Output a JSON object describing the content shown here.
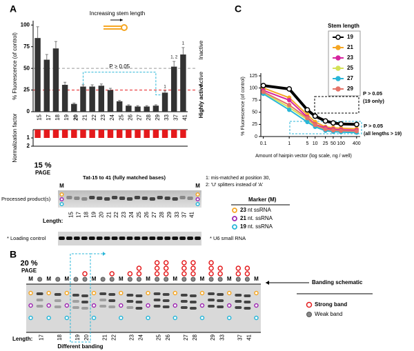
{
  "chart_data": [
    {
      "type": "bar",
      "panel": "A",
      "ylabel": "% Fluorescence (of control)",
      "categories": [
        "15",
        "17",
        "18",
        "19",
        "20",
        "21",
        "22",
        "23",
        "24",
        "25",
        "26",
        "27",
        "28",
        "29",
        "33",
        "37",
        "41"
      ],
      "values": [
        85,
        60,
        73,
        31,
        9,
        29,
        29,
        30,
        25,
        12,
        7,
        6,
        6,
        7,
        22,
        52,
        66
      ],
      "errors": [
        13,
        6,
        8,
        3,
        1,
        2,
        2,
        2,
        2,
        1,
        1,
        1,
        1,
        1,
        2,
        6,
        8
      ],
      "bar_notes": [
        null,
        null,
        null,
        null,
        null,
        null,
        null,
        null,
        null,
        null,
        null,
        null,
        null,
        null,
        "1",
        "1, 2",
        "1"
      ],
      "highlight": "20",
      "highlight_color": "#e41a1c",
      "color": "#333333",
      "ylim": [
        0,
        105
      ],
      "yticks": [
        0,
        25,
        50,
        75,
        100
      ],
      "ref_lines": [
        {
          "value": 50,
          "label": "Inactive",
          "color": "#999999"
        },
        {
          "value": 25,
          "label": "Highly active",
          "color": "#e41a1c"
        }
      ],
      "annotations": {
        "stem": "Increasing stem length",
        "p": "P > 0.05",
        "active": "Active"
      }
    },
    {
      "type": "bar",
      "inverted": true,
      "ylabel": "Normalization factor",
      "values": [
        1,
        1,
        1,
        1,
        1,
        1,
        1,
        1,
        1,
        1,
        1,
        1,
        1,
        1,
        1,
        1,
        1
      ],
      "color": "#e41a1c",
      "ylim": [
        0,
        2
      ],
      "yticks": [
        1,
        2
      ],
      "ytick_colors": [
        "#e41a1c",
        "#000000"
      ]
    },
    {
      "type": "line",
      "panel": "C",
      "ylabel": "% Fluorescence (of control)",
      "xlabel": "Amount of hairpin vector (log scale, ng / well)",
      "log_x": true,
      "x": [
        0.1,
        1,
        5,
        10,
        25,
        50,
        100,
        400
      ],
      "xlim": [
        0.08,
        550
      ],
      "xticks": [
        0.1,
        1,
        5,
        10,
        25,
        50,
        100,
        400
      ],
      "ylim": [
        0,
        125
      ],
      "yticks": [
        0,
        25,
        50,
        75,
        100,
        125
      ],
      "legend_title": "Stem length",
      "series": [
        {
          "name": "19",
          "color": "#000000",
          "values": [
            105,
            98,
            55,
            42,
            32,
            28,
            26,
            25
          ]
        },
        {
          "name": "21",
          "color": "#f5a623",
          "values": [
            100,
            80,
            45,
            30,
            20,
            18,
            17,
            16
          ]
        },
        {
          "name": "23",
          "color": "#d6249f",
          "values": [
            95,
            75,
            40,
            25,
            18,
            15,
            14,
            13
          ]
        },
        {
          "name": "25",
          "color": "#d4e157",
          "values": [
            90,
            60,
            35,
            22,
            15,
            12,
            11,
            10
          ]
        },
        {
          "name": "27",
          "color": "#29b6d8",
          "values": [
            88,
            55,
            30,
            20,
            12,
            10,
            9,
            8
          ]
        },
        {
          "name": "29",
          "color": "#e57368",
          "values": [
            92,
            65,
            38,
            24,
            15,
            13,
            12,
            11
          ]
        }
      ],
      "annotations": {
        "p19": "P > 0.05",
        "p19b": "(19 only)",
        "pall": "P > 0.05",
        "pallb": "(all lengths > 19)"
      }
    }
  ],
  "gel_a": {
    "percent": "15 %",
    "page": "PAGE",
    "marker": "M",
    "title": "Tat-15 to 41 (fully matched bases)",
    "notes": [
      "1: mis-matched at position 30,",
      "2: 'U' splitters instead of 'A'"
    ],
    "processed": "Processed product(s)",
    "length": "Length:",
    "lanes": [
      "15",
      "17",
      "18",
      "19",
      "20",
      "21",
      "22",
      "23",
      "24",
      "25",
      "26",
      "27",
      "28",
      "29",
      "33",
      "37",
      "41"
    ],
    "loading": "* Loading control",
    "u6": "* U6 small RNA",
    "legend_title": "Marker (M)",
    "markers": [
      {
        "size": "23",
        "label": "nt ssRNA",
        "color": "#f5a623"
      },
      {
        "size": "21",
        "label": "nt. ssRNA",
        "color": "#9c27b0"
      },
      {
        "size": "19",
        "label": "nt. ssRNA",
        "color": "#29b6d8"
      }
    ]
  },
  "gel_b": {
    "panel": "B",
    "percent": "20 %",
    "page": "PAGE",
    "marker": "M",
    "length": "Length:",
    "lanes": [
      "17",
      "18",
      "19",
      "20",
      "21",
      "22",
      "23",
      "24",
      "25",
      "26",
      "27",
      "28",
      "29",
      "33",
      "37",
      "41"
    ],
    "different": "Different banding",
    "schematic": "Banding schematic",
    "strong": "Strong band",
    "weak": "Weak band"
  }
}
